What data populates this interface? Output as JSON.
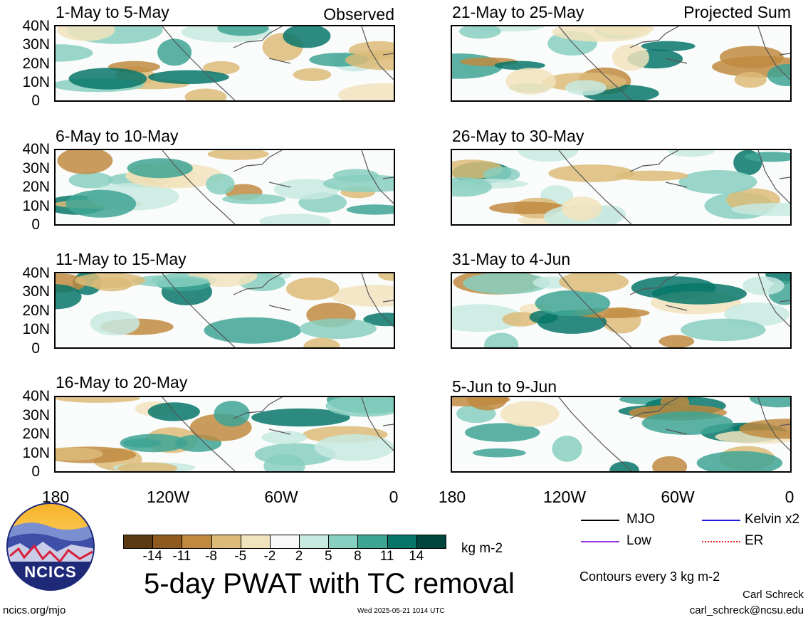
{
  "panels": [
    {
      "title": "1-May to 5-May",
      "tag": "Observed"
    },
    {
      "title": "21-May to 25-May",
      "tag": "Projected Sum"
    },
    {
      "title": "6-May to 10-May",
      "tag": ""
    },
    {
      "title": "26-May to 30-May",
      "tag": ""
    },
    {
      "title": "11-May to 15-May",
      "tag": ""
    },
    {
      "title": "31-May to 4-Jun",
      "tag": ""
    },
    {
      "title": "16-May to 20-May",
      "tag": ""
    },
    {
      "title": "5-Jun to 9-Jun",
      "tag": ""
    }
  ],
  "y_axis_labels": [
    "40N",
    "30N",
    "20N",
    "10N",
    "0"
  ],
  "x_axis_labels": [
    "180",
    "120W",
    "60W",
    "0"
  ],
  "colorbar": {
    "tick_labels": [
      "-14",
      "-11",
      "-8",
      "-5",
      "-2",
      "2",
      "5",
      "8",
      "11",
      "14"
    ],
    "colors": [
      "#5a3a12",
      "#8e5a1e",
      "#bf8a3f",
      "#dcbb78",
      "#f1e3bd",
      "#f8f8f8",
      "#c7e9e0",
      "#87cfc0",
      "#3ea594",
      "#07756a",
      "#00463c"
    ],
    "units": "kg m-2"
  },
  "legend": {
    "items": [
      {
        "label": "MJO",
        "color": "#000000"
      },
      {
        "label": "Kelvin x2",
        "color": "#1d1dd8"
      },
      {
        "label": "Low",
        "color": "#9a33e0"
      },
      {
        "label": "ER",
        "color": "#e32020"
      }
    ],
    "contours": "Contours every 3 kg m-2"
  },
  "main_title": "5-day PWAT with TC removal",
  "logo_text": "NCICS",
  "footer": {
    "url": "ncics.org/mjo",
    "timestamp": "Wed 2025-05-21 1014 UTC",
    "author": "Carl Schreck",
    "email": "carl_schreck@ncsu.edu"
  }
}
